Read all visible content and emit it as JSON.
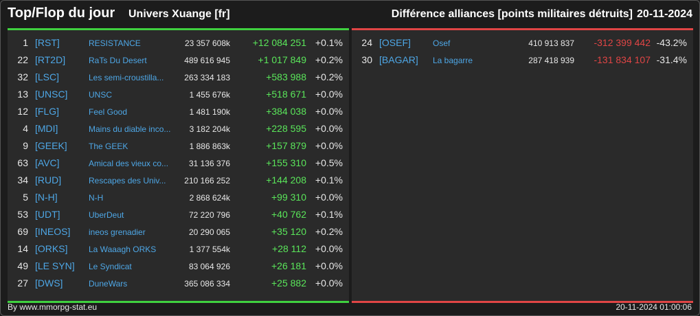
{
  "header": {
    "title": "Top/Flop du jour",
    "universe": "Univers Xuange [fr]",
    "subtitle": "Différence alliances [points militaires détruits]",
    "date": "20-11-2024"
  },
  "colors": {
    "top_accent": "#3fd13f",
    "flop_accent": "#e04545",
    "tag_color": "#4ea7e6"
  },
  "top": [
    {
      "rank": "1",
      "tag": "[RST]",
      "name": "RESISTANCE",
      "points": "23 357 608k",
      "diff": "+12 084 251",
      "pct": "+0.1%"
    },
    {
      "rank": "22",
      "tag": "[RT2D]",
      "name": "RaTs Du Desert",
      "points": "489 616 945",
      "diff": "+1 017 849",
      "pct": "+0.2%"
    },
    {
      "rank": "32",
      "tag": "[LSC]",
      "name": "Les semi-croustilla...",
      "points": "263 334 183",
      "diff": "+583 988",
      "pct": "+0.2%"
    },
    {
      "rank": "13",
      "tag": "[UNSC]",
      "name": "UNSC",
      "points": "1 455 676k",
      "diff": "+518 671",
      "pct": "+0.0%"
    },
    {
      "rank": "12",
      "tag": "[FLG]",
      "name": "Feel Good",
      "points": "1 481 190k",
      "diff": "+384 038",
      "pct": "+0.0%"
    },
    {
      "rank": "4",
      "tag": "[MDI]",
      "name": "Mains du diable inco...",
      "points": "3 182 204k",
      "diff": "+228 595",
      "pct": "+0.0%"
    },
    {
      "rank": "9",
      "tag": "[GEEK]",
      "name": "The GEEK",
      "points": "1 886 863k",
      "diff": "+157 879",
      "pct": "+0.0%"
    },
    {
      "rank": "63",
      "tag": "[AVC]",
      "name": "Amical des vieux co...",
      "points": "31 136 376",
      "diff": "+155 310",
      "pct": "+0.5%"
    },
    {
      "rank": "34",
      "tag": "[RUD]",
      "name": "Rescapes des Univ...",
      "points": "210 166 252",
      "diff": "+144 208",
      "pct": "+0.1%"
    },
    {
      "rank": "5",
      "tag": "[N-H]",
      "name": "N-H",
      "points": "2 868 624k",
      "diff": "+99 310",
      "pct": "+0.0%"
    },
    {
      "rank": "53",
      "tag": "[UDT]",
      "name": "UberDeut",
      "points": "72 220 796",
      "diff": "+40 762",
      "pct": "+0.1%"
    },
    {
      "rank": "69",
      "tag": "[INEOS]",
      "name": "ineos grenadier",
      "points": "20 290 065",
      "diff": "+35 120",
      "pct": "+0.2%"
    },
    {
      "rank": "14",
      "tag": "[ORKS]",
      "name": "La Waaagh ORKS",
      "points": "1 377 554k",
      "diff": "+28 112",
      "pct": "+0.0%"
    },
    {
      "rank": "49",
      "tag": "[LE SYN]",
      "name": "Le Syndicat",
      "points": "83 064 926",
      "diff": "+26 181",
      "pct": "+0.0%"
    },
    {
      "rank": "27",
      "tag": "[DWS]",
      "name": "DuneWars",
      "points": "365 086 334",
      "diff": "+25 882",
      "pct": "+0.0%"
    }
  ],
  "flop": [
    {
      "rank": "24",
      "tag": "[OSEF]",
      "name": "Osef",
      "points": "410 913 837",
      "diff": "-312 399 442",
      "pct": "-43.2%"
    },
    {
      "rank": "30",
      "tag": "[BAGAR]",
      "name": "La bagarre",
      "points": "287 418 939",
      "diff": "-131 834 107",
      "pct": "-31.4%"
    }
  ],
  "footer": {
    "credit": "By www.mmorpg-stat.eu",
    "timestamp": "20-11-2024 01:00:06"
  }
}
